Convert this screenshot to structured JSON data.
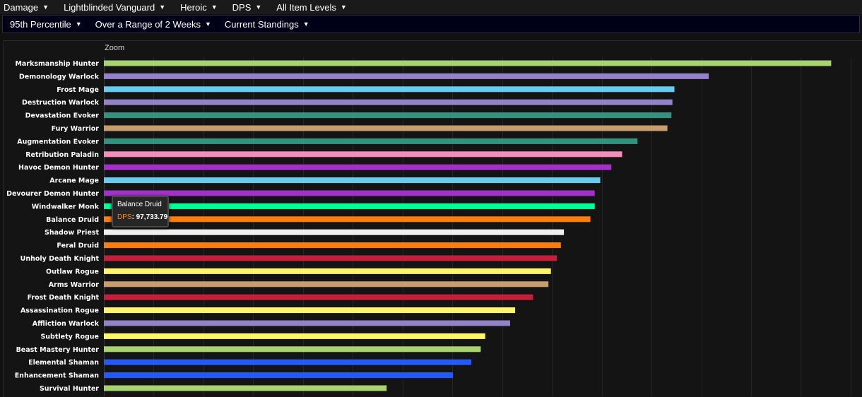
{
  "top_filters": [
    {
      "label": "Damage"
    },
    {
      "label": "Lightblinded Vanguard"
    },
    {
      "label": "Heroic"
    },
    {
      "label": "DPS"
    },
    {
      "label": "All Item Levels"
    }
  ],
  "sub_filters": [
    {
      "label": "95th Percentile"
    },
    {
      "label": "Over a Range of 2 Weeks"
    },
    {
      "label": "Current Standings"
    }
  ],
  "zoom_label": "Zoom",
  "tooltip": {
    "title": "Balance Druid",
    "key": "DPS",
    "value": "97,733.79"
  },
  "chart_data": {
    "type": "bar",
    "orientation": "horizontal",
    "grid": true,
    "xlim": [
      0,
      152000
    ],
    "categories": [
      "Marksmanship Hunter",
      "Demonology Warlock",
      "Frost Mage",
      "Destruction Warlock",
      "Devastation Evoker",
      "Fury Warrior",
      "Augmentation Evoker",
      "Retribution Paladin",
      "Havoc Demon Hunter",
      "Arcane Mage",
      "Devourer Demon Hunter",
      "Windwalker Monk",
      "Balance Druid",
      "Shadow Priest",
      "Feral Druid",
      "Unholy Death Knight",
      "Outlaw Rogue",
      "Arms Warrior",
      "Frost Death Knight",
      "Assassination Rogue",
      "Affliction Warlock",
      "Subtlety Rogue",
      "Beast Mastery Hunter",
      "Elemental Shaman",
      "Enhancement Shaman",
      "Survival Hunter"
    ],
    "values": [
      146100,
      121500,
      114600,
      114200,
      114000,
      113200,
      107200,
      104100,
      101900,
      99700,
      98600,
      98600,
      97733.79,
      92400,
      91800,
      91000,
      89800,
      89300,
      86200,
      82600,
      81600,
      76600,
      75700,
      73800,
      70100,
      56800
    ],
    "colors": [
      "#a9d271",
      "#9482c9",
      "#68ccef",
      "#9482c9",
      "#33937f",
      "#c79c6e",
      "#33937f",
      "#f58cba",
      "#a330c9",
      "#68ccef",
      "#a330c9",
      "#00ff96",
      "#ff7d0a",
      "#f0f0f0",
      "#ff7d0a",
      "#c41f3b",
      "#fff569",
      "#c79c6e",
      "#c41f3b",
      "#fff569",
      "#9482c9",
      "#fff569",
      "#a9d271",
      "#2459ff",
      "#2459ff",
      "#a9d271"
    ]
  }
}
